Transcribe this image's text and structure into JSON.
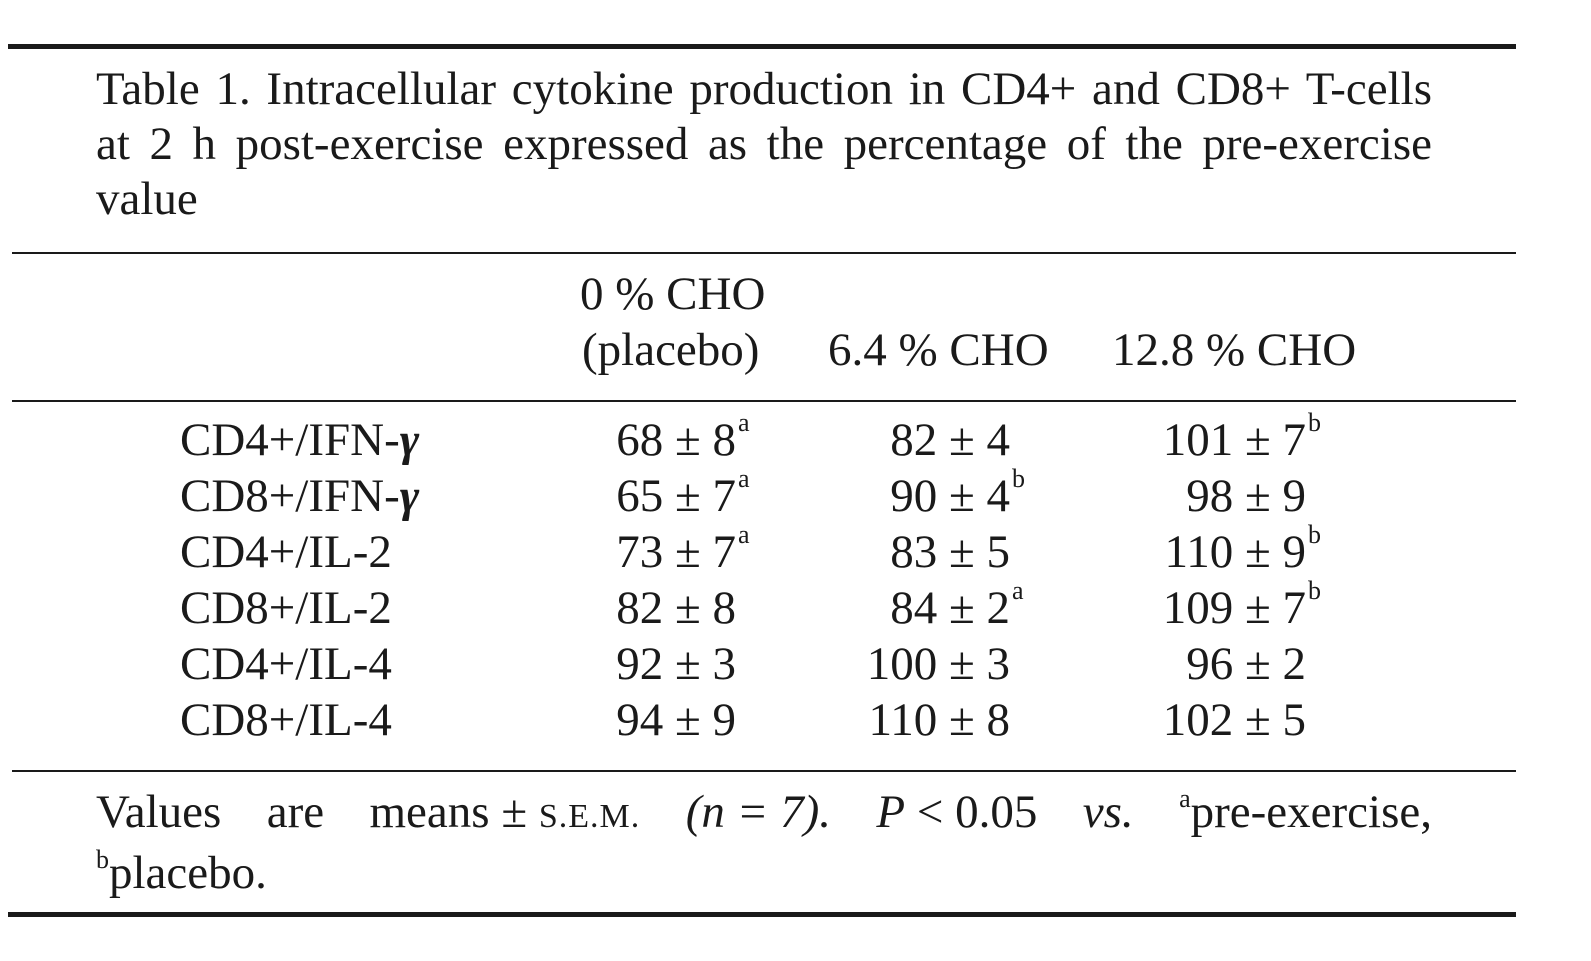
{
  "caption": "Table 1. Intracellular cytokine production in CD4+ and CD8+ T-cells at 2 h post-exercise expressed as the percentage of the pre-exercise value",
  "columns": {
    "c1_line1": "0 % CHO",
    "c1_line2": "(placebo)",
    "c2": "6.4 % CHO",
    "c3": "12.8 % CHO"
  },
  "rows": [
    {
      "prefix": "CD4+/IFN-",
      "greek": "γ",
      "v1": "68 ± 8",
      "s1": "a",
      "v2": "82 ± 4",
      "s2": "",
      "v3": "101 ± 7",
      "s3": "b"
    },
    {
      "prefix": "CD8+/IFN-",
      "greek": "γ",
      "v1": "65 ± 7",
      "s1": "a",
      "v2": "90 ± 4",
      "s2": "b",
      "v3": "98 ± 9",
      "s3": ""
    },
    {
      "prefix": "CD4+/IL-2",
      "greek": "",
      "v1": "73 ± 7",
      "s1": "a",
      "v2": "83 ± 5",
      "s2": "",
      "v3": "110 ± 9",
      "s3": "b"
    },
    {
      "prefix": "CD8+/IL-2",
      "greek": "",
      "v1": "82 ± 8",
      "s1": "",
      "v2": "84 ± 2",
      "s2": "a",
      "v3": "109 ± 7",
      "s3": "b"
    },
    {
      "prefix": "CD4+/IL-4",
      "greek": "",
      "v1": "92 ± 3",
      "s1": "",
      "v2": "100 ± 3",
      "s2": "",
      "v3": "96 ± 2",
      "s3": ""
    },
    {
      "prefix": "CD8+/IL-4",
      "greek": "",
      "v1": "94 ± 9",
      "s1": "",
      "v2": "110 ± 8",
      "s2": "",
      "v3": "102 ± 5",
      "s3": ""
    }
  ],
  "footnote": {
    "values": "Values",
    "are": "are",
    "means": "means ±",
    "sem": "s.e.m.",
    "n": "(n = 7).",
    "p": "P",
    "lt": "< 0.05",
    "vs": "vs.",
    "sup_a": "a",
    "pre": "pre-exercise,",
    "sup_b": "b",
    "placebo": "placebo."
  }
}
